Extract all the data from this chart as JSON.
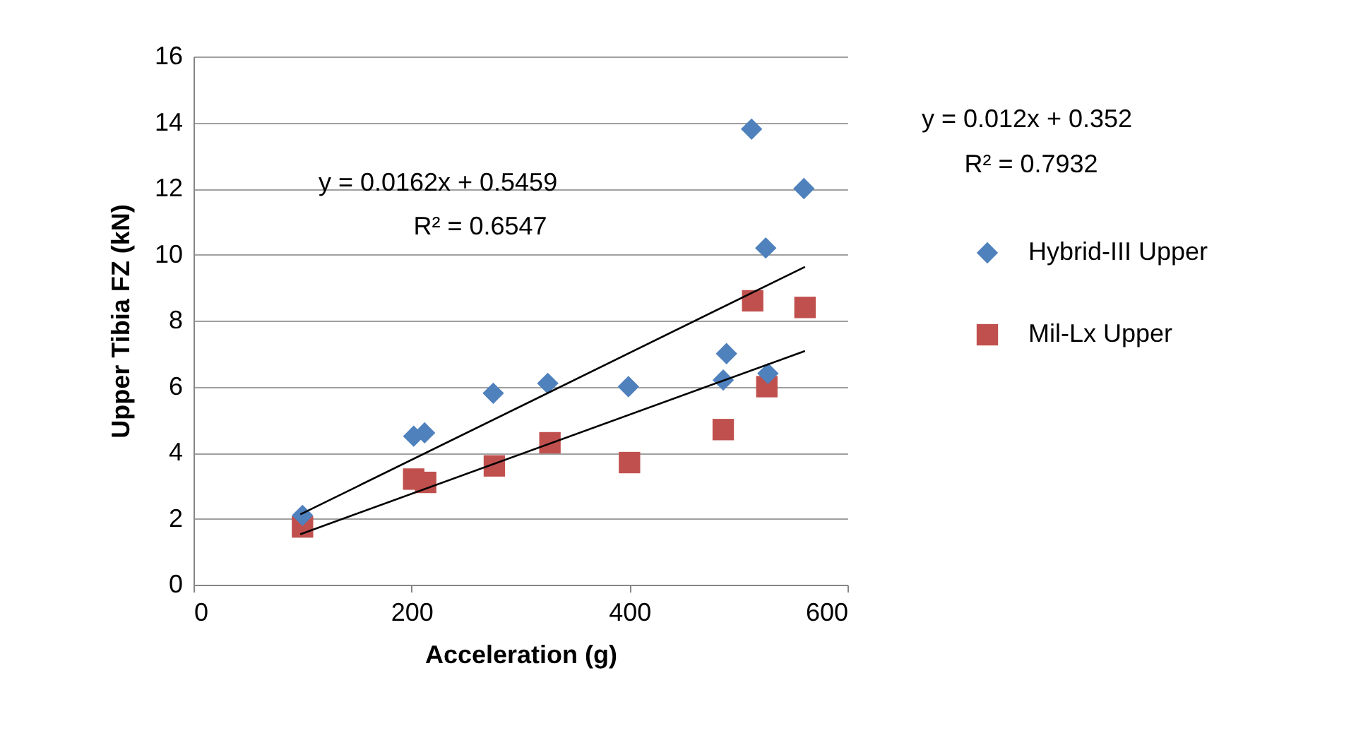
{
  "chart_data": {
    "type": "scatter",
    "xlabel": "Acceleration (g)",
    "ylabel": "Upper Tibia FZ (kN)",
    "xlim": [
      0,
      600
    ],
    "xticks": [
      0,
      200,
      400,
      600
    ],
    "ylim": [
      0,
      16
    ],
    "yticks": [
      0,
      2,
      4,
      6,
      8,
      10,
      12,
      14,
      16
    ],
    "grid": "y",
    "legend": "right",
    "annotations": [
      "y = 0.0162x + 0.5459",
      "R² = 0.6547",
      "y = 0.012x + 0.352",
      "R² = 0.7932"
    ],
    "series": [
      {
        "name": "Hybrid-III Upper",
        "color": "#4f81bd",
        "marker": "diamond",
        "x": [
          100,
          202,
          212,
          275,
          325,
          399,
          486,
          489,
          512,
          525,
          527,
          560
        ],
        "values": [
          2.1,
          4.5,
          4.6,
          5.8,
          6.1,
          6.0,
          6.2,
          7.0,
          13.8,
          10.2,
          6.4,
          12.0
        ]
      },
      {
        "name": "Mil-Lx Upper",
        "color": "#c0504d",
        "marker": "square",
        "x": [
          100,
          202,
          213,
          276,
          327,
          400,
          486,
          513,
          526,
          561
        ],
        "values": [
          1.75,
          3.2,
          3.1,
          3.6,
          4.3,
          3.7,
          4.7,
          8.6,
          6.0,
          8.4
        ]
      },
      {
        "type": "line",
        "color": "#000000",
        "x": [
          98,
          561
        ],
        "values": [
          2.13,
          9.63
        ]
      },
      {
        "type": "line",
        "color": "#000000",
        "x": [
          98,
          561
        ],
        "values": [
          1.53,
          7.08
        ]
      }
    ]
  }
}
